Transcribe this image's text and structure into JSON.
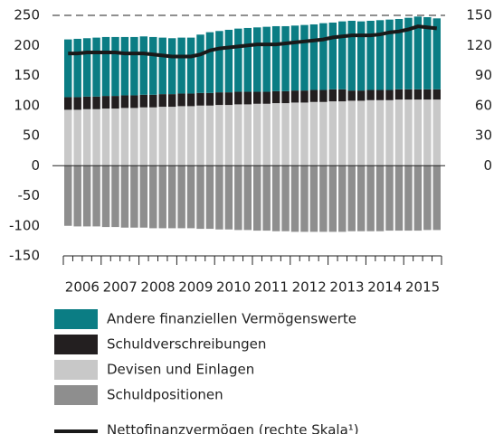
{
  "chart_data": {
    "type": "bar",
    "categories": [
      "2006",
      null,
      null,
      null,
      "2007",
      null,
      null,
      null,
      "2008",
      null,
      null,
      null,
      "2009",
      null,
      null,
      null,
      "2010",
      null,
      null,
      null,
      "2011",
      null,
      null,
      null,
      "2012",
      null,
      null,
      null,
      "2013",
      null,
      null,
      null,
      "2014",
      null,
      null,
      null,
      "2015",
      null,
      null,
      null
    ],
    "stacked": true,
    "series": [
      {
        "name": "Andere finanziellen Vermögenswerte",
        "color": "#0b7d84",
        "values": [
          96,
          97,
          97,
          98,
          98,
          98,
          97,
          97,
          97,
          96,
          94,
          93,
          93,
          93,
          97,
          101,
          102,
          104,
          105,
          106,
          107,
          108,
          108,
          108,
          108,
          109,
          109,
          111,
          111,
          113,
          116,
          115,
          115,
          116,
          117,
          117,
          119,
          121,
          120,
          118
        ]
      },
      {
        "name": "Schuldverschreibungen",
        "color": "#231f20",
        "values": [
          21,
          21,
          21,
          21,
          21,
          21,
          21,
          21,
          21,
          21,
          21,
          21,
          21,
          21,
          21,
          21,
          21,
          21,
          21,
          21,
          20,
          20,
          20,
          20,
          20,
          20,
          20,
          20,
          20,
          20,
          17,
          17,
          17,
          17,
          17,
          17,
          17,
          17,
          17,
          17
        ]
      },
      {
        "name": "Devisen und Einlagen",
        "color": "#c8c8c8",
        "values": [
          93,
          93,
          94,
          94,
          95,
          95,
          96,
          96,
          97,
          97,
          98,
          98,
          99,
          99,
          100,
          100,
          101,
          101,
          102,
          102,
          103,
          103,
          104,
          104,
          105,
          105,
          106,
          106,
          107,
          107,
          108,
          108,
          109,
          109,
          109,
          110,
          110,
          110,
          110,
          110
        ]
      },
      {
        "name": "Schuldpositionen",
        "color": "#8e8e8e",
        "values": [
          -100,
          -101,
          -101,
          -101,
          -102,
          -102,
          -103,
          -103,
          -103,
          -104,
          -104,
          -104,
          -104,
          -104,
          -105,
          -105,
          -106,
          -106,
          -107,
          -107,
          -108,
          -108,
          -109,
          -109,
          -110,
          -110,
          -110,
          -110,
          -110,
          -110,
          -109,
          -109,
          -109,
          -109,
          -108,
          -108,
          -108,
          -108,
          -107,
          -107
        ]
      },
      {
        "name": "Nettofinanzvermögen (rechte Skala¹)",
        "color": "#1a1a1a",
        "type": "line",
        "axis": "y2",
        "values": [
          112,
          112,
          113,
          113,
          113,
          113,
          112,
          112,
          112,
          111,
          110,
          109,
          109,
          109,
          111,
          115,
          117,
          118,
          119,
          120,
          121,
          121,
          121,
          122,
          123,
          124,
          125,
          126,
          128,
          129,
          130,
          130,
          130,
          131,
          133,
          134,
          136,
          139,
          138,
          137
        ]
      }
    ],
    "ylim": [
      -150,
      250
    ],
    "yticks": [
      -150,
      -100,
      -50,
      0,
      50,
      100,
      150,
      200,
      250
    ],
    "y2lim": [
      0,
      150
    ],
    "y2ticks": [
      0,
      30,
      60,
      90,
      120,
      150
    ]
  }
}
